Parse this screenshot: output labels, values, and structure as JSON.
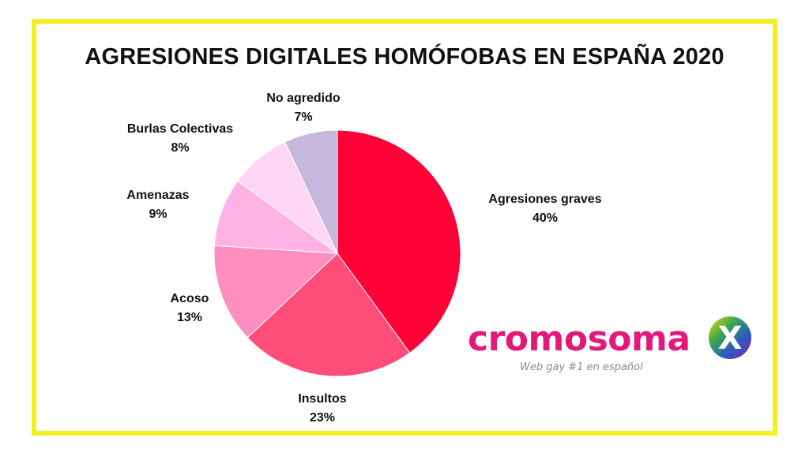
{
  "chart_data": {
    "type": "pie",
    "title": "AGRESIONES DIGITALES HOMÓFOBAS EN ESPAÑA 2020",
    "slices": [
      {
        "label": "Agresiones graves",
        "value": 40,
        "value_label": "40%",
        "color": "#ff0037"
      },
      {
        "label": "Insultos",
        "value": 23,
        "value_label": "23%",
        "color": "#ff4d7a"
      },
      {
        "label": "Acoso",
        "value": 13,
        "value_label": "13%",
        "color": "#ff8ec0"
      },
      {
        "label": "Amenazas",
        "value": 9,
        "value_label": "9%",
        "color": "#ffb3e5"
      },
      {
        "label": "Burlas Colectivas",
        "value": 8,
        "value_label": "8%",
        "color": "#ffd6f3"
      },
      {
        "label": "No agredido",
        "value": 7,
        "value_label": "7%",
        "color": "#c5b8dc"
      }
    ],
    "start_angle_deg": 0,
    "direction": "clockwise"
  },
  "logo": {
    "wordmark": "cromosoma",
    "letter": "X",
    "tagline": "Web gay #1 en español",
    "wordmark_color": "#e4187a"
  }
}
